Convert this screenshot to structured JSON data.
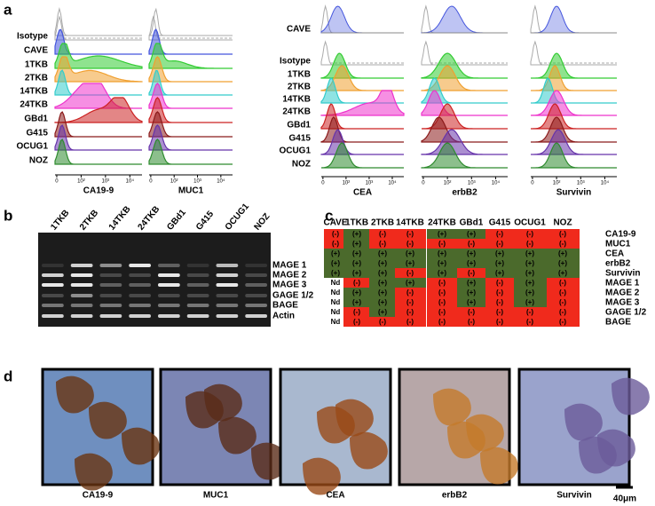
{
  "panel_a": {
    "label": "a",
    "left": {
      "rows": [
        "Isotype",
        "CAVE",
        "1TKB",
        "2TKB",
        "14TKB",
        "24TKB",
        "GBd1",
        "G415",
        "OCUG1",
        "NOZ"
      ],
      "columns": [
        "CA19-9",
        "MUC1"
      ]
    },
    "right": {
      "top_row": "CAVE",
      "rows": [
        "Isotype",
        "1TKB",
        "2TKB",
        "14TKB",
        "24TKB",
        "GBd1",
        "G415",
        "OCUG1",
        "NOZ"
      ],
      "columns": [
        "CEA",
        "erbB2",
        "Survivin"
      ]
    },
    "axis_ticks": [
      "0",
      "10²",
      "10³",
      "10⁴"
    ]
  },
  "panel_b": {
    "label": "b",
    "lanes": [
      "1TKB",
      "2TKB",
      "14TKB",
      "24TKB",
      "GBd1",
      "G415",
      "OCUG1",
      "NOZ"
    ],
    "genes": [
      "MAGE 1",
      "MAGE 2",
      "MAGE 3",
      "GAGE 1/2",
      "BAGE",
      "Actin"
    ]
  },
  "panel_c": {
    "label": "c",
    "columns": [
      "CAVE",
      "1TKB",
      "2TKB",
      "14TKB",
      "24TKB",
      "GBd1",
      "G415",
      "OCUG1",
      "NOZ"
    ],
    "rows": [
      {
        "name": "CA19-9",
        "cells": [
          "(-)",
          "(+)",
          "(-)",
          "(-)",
          "(+)",
          "(+)",
          "(-)",
          "(-)",
          "(-)"
        ]
      },
      {
        "name": "MUC1",
        "cells": [
          "(-)",
          "(+)",
          "(-)",
          "(-)",
          "(-)",
          "(-)",
          "(-)",
          "(-)",
          "(-)"
        ]
      },
      {
        "name": "CEA",
        "cells": [
          "(+)",
          "(+)",
          "(+)",
          "(+)",
          "(+)",
          "(+)",
          "(+)",
          "(+)",
          "(+)"
        ]
      },
      {
        "name": "erbB2",
        "cells": [
          "(+)",
          "(+)",
          "(+)",
          "(+)",
          "(+)",
          "(+)",
          "(+)",
          "(+)",
          "(+)"
        ]
      },
      {
        "name": "Survivin",
        "cells": [
          "(+)",
          "(+)",
          "(+)",
          "(-)",
          "(+)",
          "(-)",
          "(+)",
          "(+)",
          "(+)"
        ]
      },
      {
        "name": "MAGE 1",
        "cells": [
          "Nd",
          "(-)",
          "(+)",
          "(+)",
          "(-)",
          "(+)",
          "(-)",
          "(+)",
          "(-)"
        ]
      },
      {
        "name": "MAGE 2",
        "cells": [
          "Nd",
          "(+)",
          "(+)",
          "(-)",
          "(-)",
          "(+)",
          "(-)",
          "(+)",
          "(-)"
        ]
      },
      {
        "name": "MAGE 3",
        "cells": [
          "Nd",
          "(+)",
          "(+)",
          "(-)",
          "(-)",
          "(+)",
          "(-)",
          "(+)",
          "(-)"
        ]
      },
      {
        "name": "GAGE 1/2",
        "cells": [
          "Nd",
          "(-)",
          "(+)",
          "(-)",
          "(-)",
          "(-)",
          "(-)",
          "(-)",
          "(-)"
        ]
      },
      {
        "name": "BAGE",
        "cells": [
          "Nd",
          "(-)",
          "(-)",
          "(-)",
          "(-)",
          "(-)",
          "(-)",
          "(-)",
          "(-)"
        ]
      }
    ]
  },
  "panel_d": {
    "label": "d",
    "captions": [
      "CA19-9",
      "MUC1",
      "CEA",
      "erbB2",
      "Survivin"
    ],
    "scale_bar": "40μm"
  }
}
